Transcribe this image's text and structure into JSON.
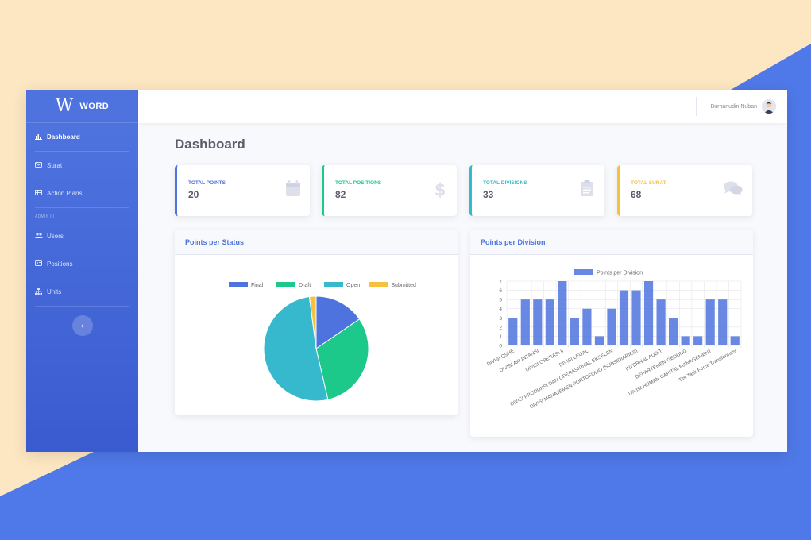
{
  "app": {
    "brand_name": "WORD",
    "brand_logo": "W"
  },
  "sidebar": {
    "items": [
      {
        "label": "Dashboard",
        "icon": "chart-bar-icon"
      },
      {
        "label": "Surat",
        "icon": "envelope-icon"
      },
      {
        "label": "Action Plans",
        "icon": "table-icon"
      }
    ],
    "admin_heading": "ADMIN III",
    "admin_items": [
      {
        "label": "Users",
        "icon": "users-icon"
      },
      {
        "label": "Positions",
        "icon": "id-card-icon"
      },
      {
        "label": "Units",
        "icon": "sitemap-icon"
      }
    ],
    "toggle_glyph": "‹"
  },
  "topbar": {
    "user_name": "Burhanudin Nuban"
  },
  "page": {
    "title": "Dashboard"
  },
  "stats": [
    {
      "label": "TOTAL POINTS",
      "value": "20",
      "color": "#4e73df",
      "icon": "calendar-icon"
    },
    {
      "label": "TOTAL POSITIONS",
      "value": "82",
      "color": "#1cc88a",
      "icon": "dollar-icon"
    },
    {
      "label": "TOTAL DIVISIONS",
      "value": "33",
      "color": "#36b9cc",
      "icon": "clipboard-icon"
    },
    {
      "label": "TOTAL SURAT",
      "value": "68",
      "color": "#f6c23e",
      "icon": "comments-icon"
    }
  ],
  "panels": {
    "status_title": "Points per Status",
    "division_title": "Points per Division"
  },
  "chart_data": [
    {
      "type": "pie",
      "title": "",
      "categories": [
        "Final",
        "Draft",
        "Open",
        "Submitted"
      ],
      "values": [
        3,
        6,
        10,
        0.4
      ],
      "colors": [
        "#4e73df",
        "#1cc88a",
        "#36b9cc",
        "#f6c23e"
      ],
      "legend": "top"
    },
    {
      "type": "bar",
      "title": "",
      "series": [
        {
          "name": "Points per Division",
          "values": [
            3,
            5,
            5,
            5,
            7,
            3,
            4,
            1,
            4,
            6,
            6,
            7,
            5,
            3,
            1,
            1,
            5,
            5,
            1
          ]
        }
      ],
      "categories": [
        "DIVISI QSHE",
        "",
        "DIVISI AKUNTANSI",
        "",
        "DIVISI OPERASI II",
        "",
        "DIVISI LEGAL",
        "",
        "DIVISI PRODUKSI DAN OPERASIONAL EKSELEN",
        "",
        "DIVISI MANAJEMEN PORTOFOLIO (SUBSIDIARIES)",
        "",
        "INTERNAL AUDIT",
        "",
        "DEPARTEMEN GEDUNG",
        "",
        "DIVISI HUMAN CAPITAL MANAGEMENT",
        "",
        "Tim Task Force Transformasi"
      ],
      "ylim": [
        0,
        7
      ],
      "yticks": [
        0,
        1,
        2,
        3,
        4,
        5,
        6,
        7
      ],
      "grid": true,
      "legend": "top",
      "color": "#4e73df"
    }
  ]
}
